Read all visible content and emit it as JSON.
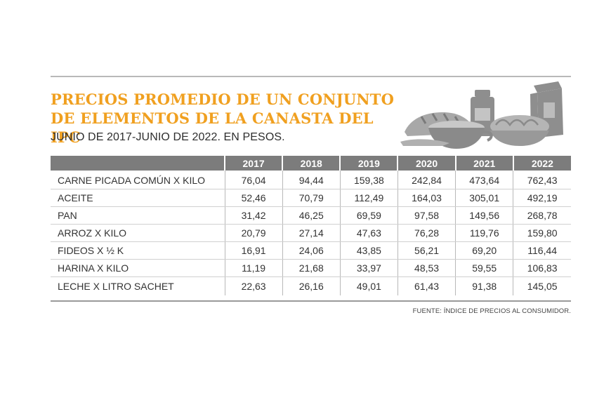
{
  "chart_data": {
    "type": "table",
    "title_lines": [
      "PRECIOS PROMEDIO DE UN CONJUNTO",
      "DE ELEMENTOS DE LA CANASTA DEL IPC"
    ],
    "subtitle": "JUNIO DE 2017-JUNIO DE 2022. EN PESOS.",
    "columns": [
      "2017",
      "2018",
      "2019",
      "2020",
      "2021",
      "2022"
    ],
    "rows": [
      {
        "label": "CARNE PICADA COMÚN X KILO",
        "values": [
          "76,04",
          "94,44",
          "159,38",
          "242,84",
          "473,64",
          "762,43"
        ]
      },
      {
        "label": "ACEITE",
        "values": [
          "52,46",
          "70,79",
          "112,49",
          "164,03",
          "305,01",
          "492,19"
        ]
      },
      {
        "label": "PAN",
        "values": [
          "31,42",
          "46,25",
          "69,59",
          "97,58",
          "149,56",
          "268,78"
        ]
      },
      {
        "label": "ARROZ X KILO",
        "values": [
          "20,79",
          "27,14",
          "47,63",
          "76,28",
          "119,76",
          "159,80"
        ]
      },
      {
        "label": "FIDEOS X ½ K",
        "values": [
          "16,91",
          "24,06",
          "43,85",
          "56,21",
          "69,20",
          "116,44"
        ]
      },
      {
        "label": "HARINA X KILO",
        "values": [
          "11,19",
          "21,68",
          "33,97",
          "48,53",
          "59,55",
          "106,83"
        ]
      },
      {
        "label": "LECHE X LITRO SACHET",
        "values": [
          "22,63",
          "26,16",
          "49,01",
          "61,43",
          "91,38",
          "145,05"
        ]
      }
    ],
    "source": "FUENTE: ÍNDICE DE PRECIOS AL CONSUMIDOR.",
    "accent_color": "#f0a020",
    "header_bg": "#7c7c7c",
    "illustration": "grocery-items-icon"
  }
}
